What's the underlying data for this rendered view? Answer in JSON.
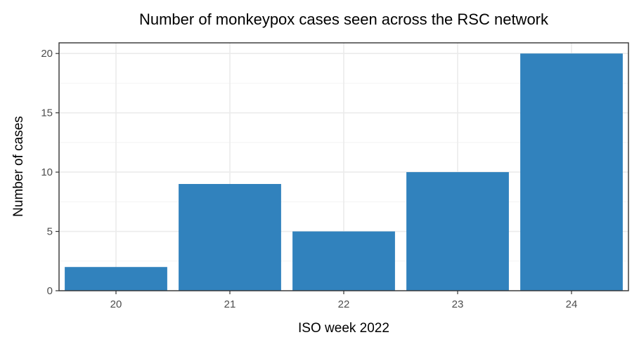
{
  "chart_data": {
    "type": "bar",
    "title": "Number of monkeypox cases seen across the RSC network",
    "xlabel": "ISO week 2022",
    "ylabel": "Number of cases",
    "categories": [
      "20",
      "21",
      "22",
      "23",
      "24"
    ],
    "values": [
      2,
      9,
      5,
      10,
      20
    ],
    "ylim": [
      0,
      20.9
    ],
    "yticks": [
      0,
      5,
      10,
      15,
      20
    ],
    "grid": true,
    "legend": "none",
    "bar_color": "#3182bd"
  }
}
